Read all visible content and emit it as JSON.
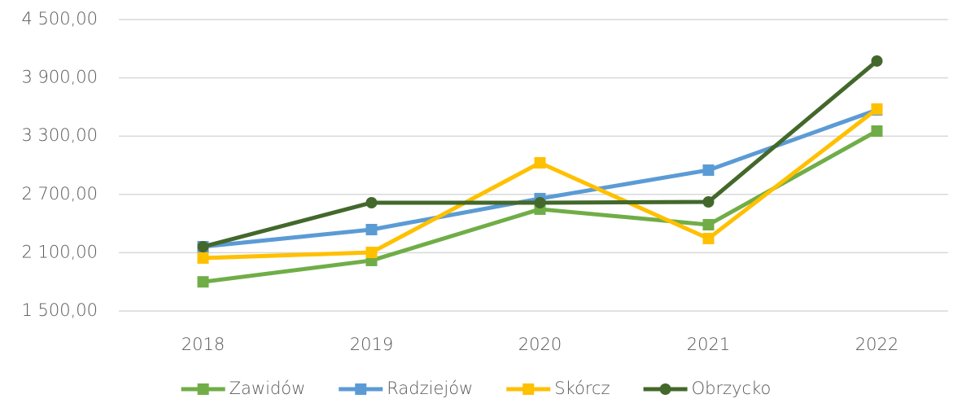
{
  "chart_data": {
    "type": "line",
    "categories": [
      "2018",
      "2019",
      "2020",
      "2021",
      "2022"
    ],
    "series": [
      {
        "name": "Zawidów",
        "color": "#70ad47",
        "marker": "square",
        "values": [
          1800,
          2020,
          2548,
          2388,
          3352
        ]
      },
      {
        "name": "Radziejów",
        "color": "#5b9bd5",
        "marker": "square",
        "values": [
          2162,
          2338,
          2657,
          2950,
          3570
        ]
      },
      {
        "name": "Skórcz",
        "color": "#ffc000",
        "marker": "square",
        "values": [
          2045,
          2103,
          3025,
          2246,
          3579
        ]
      },
      {
        "name": "Obrzycko",
        "color": "#43682b",
        "marker": "circle",
        "values": [
          2162,
          2615,
          2615,
          2623,
          4073
        ]
      }
    ],
    "ylim": [
      1500,
      4500
    ],
    "yticks": [
      {
        "value": 1500,
        "label": "1 500,00"
      },
      {
        "value": 2100,
        "label": "2 100,00"
      },
      {
        "value": 2700,
        "label": "2 700,00"
      },
      {
        "value": 3300,
        "label": "3 300,00"
      },
      {
        "value": 3900,
        "label": "3 900,00"
      },
      {
        "value": 4500,
        "label": "4 500,00"
      }
    ],
    "grid": true,
    "legend": "bottom"
  }
}
